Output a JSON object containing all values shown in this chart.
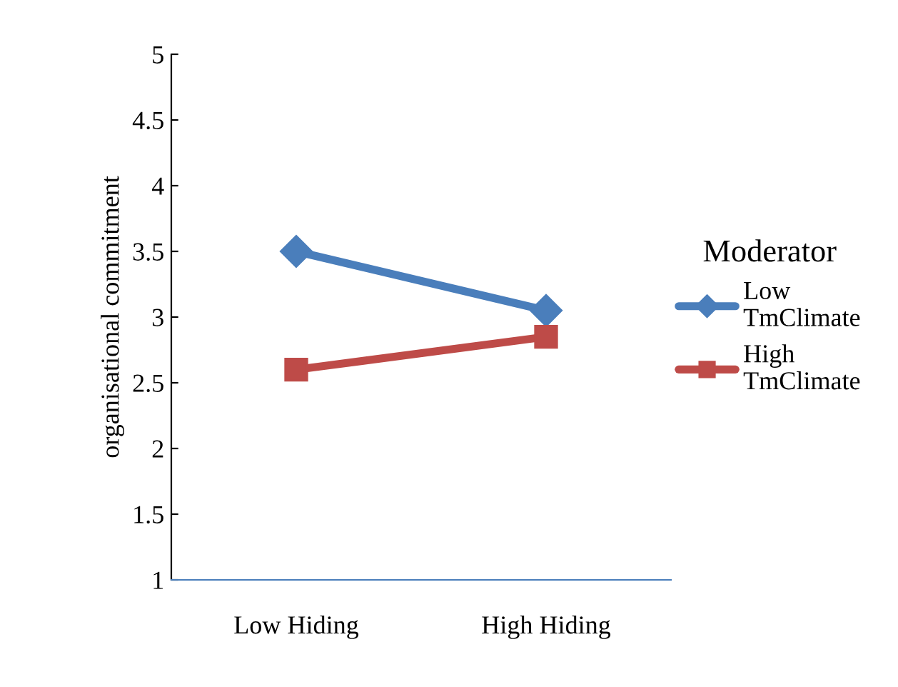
{
  "chart_data": {
    "type": "line",
    "ylabel": "organisational commitment",
    "legend_title": "Moderator",
    "legend": "right",
    "categories": [
      "Low Hiding",
      "High Hiding"
    ],
    "series": [
      {
        "name": "Low\nTmClimate",
        "color": "#4a7ebb",
        "values": [
          3.5,
          3.05
        ],
        "marker": "diamond"
      },
      {
        "name": "High\nTmClimate",
        "color": "#be4b48",
        "values": [
          2.6,
          2.85
        ],
        "marker": "square"
      }
    ],
    "ylim": [
      1,
      5
    ],
    "yticks": [
      1,
      1.5,
      2,
      2.5,
      3,
      3.5,
      4,
      4.5,
      5
    ],
    "grid": false
  }
}
